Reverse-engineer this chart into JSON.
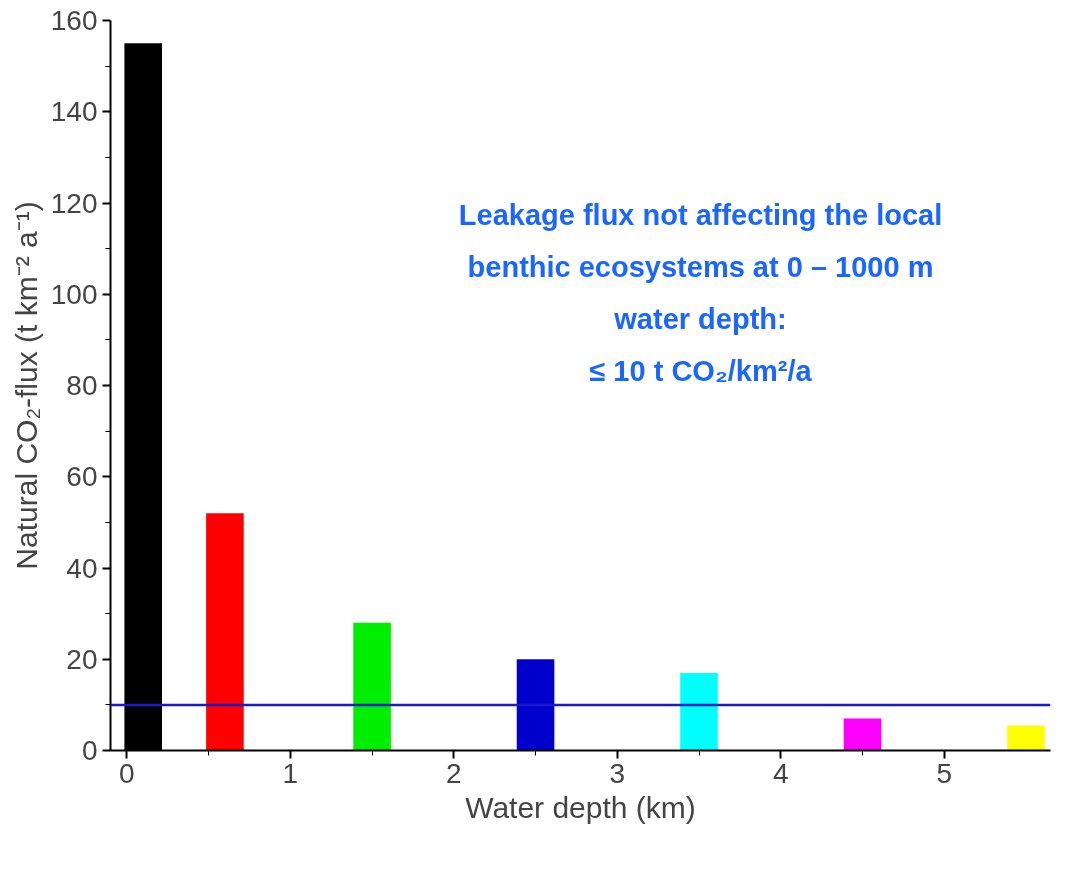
{
  "chart_data": {
    "type": "bar",
    "xlabel": "Water depth (km)",
    "ylabel": "Natural CO₂-flux (t km⁻² a⁻¹)",
    "x": [
      0.1,
      0.6,
      1.5,
      2.5,
      3.5,
      4.5,
      5.5
    ],
    "values": [
      155,
      52,
      28,
      20,
      17,
      7,
      5.5
    ],
    "colors": [
      "#000000",
      "#ff0000",
      "#00ee00",
      "#0000cc",
      "#00ffff",
      "#ff00ff",
      "#ffff00"
    ],
    "xlim": [
      -0.1,
      5.65
    ],
    "xticks": [
      0,
      1,
      2,
      3,
      4,
      5
    ],
    "ylim": [
      0,
      160
    ],
    "yticks": [
      0,
      20,
      40,
      60,
      80,
      100,
      120,
      140,
      160
    ],
    "ref_lines": [
      {
        "axis": "y",
        "value": 10,
        "color": "#1a1acc",
        "line_style": "solid"
      }
    ],
    "annotations": [
      "Leakage flux not affecting the local\nbenthic ecosystems at 0 – 1000 m\nwater depth:\n≤ 10 t CO₂/km²/a"
    ],
    "grid": false
  }
}
